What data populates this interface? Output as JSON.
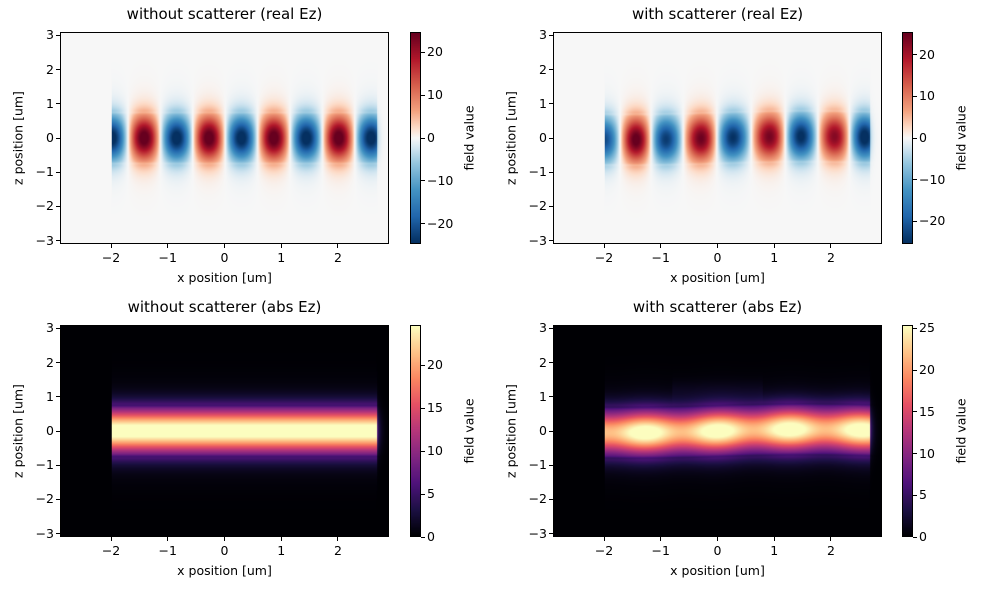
{
  "chart_data": [
    {
      "type": "heatmap",
      "title": "without scatterer (real Ez)",
      "xlabel": "x position [um]",
      "ylabel": "z position [um]",
      "xlim": [
        -2.9,
        2.9
      ],
      "ylim": [
        -3.1,
        3.1
      ],
      "xticks": [
        "−2",
        "−1",
        "0",
        "1",
        "2"
      ],
      "xtick_values": [
        -2,
        -1,
        0,
        1,
        2
      ],
      "yticks": [
        "−3",
        "−2",
        "−1",
        "0",
        "1",
        "2",
        "3"
      ],
      "ytick_values": [
        -3,
        -2,
        -1,
        0,
        1,
        2,
        3
      ],
      "colormap": "RdBu_r",
      "colorbar": {
        "label": "field value",
        "range": [
          -24.7,
          24.7
        ],
        "ticks": [
          "−20",
          "−10",
          "0",
          "10",
          "20"
        ],
        "tick_values": [
          -20,
          -10,
          0,
          10,
          20
        ]
      }
    },
    {
      "type": "heatmap",
      "title": "with scatterer (real Ez)",
      "xlabel": "x position [um]",
      "ylabel": "z position [um]",
      "xlim": [
        -2.9,
        2.9
      ],
      "ylim": [
        -3.1,
        3.1
      ],
      "xticks": [
        "−2",
        "−1",
        "0",
        "1",
        "2"
      ],
      "xtick_values": [
        -2,
        -1,
        0,
        1,
        2
      ],
      "yticks": [
        "−3",
        "−2",
        "−1",
        "0",
        "1",
        "2",
        "3"
      ],
      "ytick_values": [
        -3,
        -2,
        -1,
        0,
        1,
        2,
        3
      ],
      "colormap": "RdBu_r",
      "colorbar": {
        "label": "field value",
        "range": [
          -25.4,
          25.4
        ],
        "ticks": [
          "−20",
          "−10",
          "0",
          "10",
          "20"
        ],
        "tick_values": [
          -20,
          -10,
          0,
          10,
          20
        ]
      }
    },
    {
      "type": "heatmap",
      "title": "without scatterer (abs Ez)",
      "xlabel": "x position [um]",
      "ylabel": "z position [um]",
      "xlim": [
        -2.9,
        2.9
      ],
      "ylim": [
        -3.1,
        3.1
      ],
      "xticks": [
        "−2",
        "−1",
        "0",
        "1",
        "2"
      ],
      "xtick_values": [
        -2,
        -1,
        0,
        1,
        2
      ],
      "yticks": [
        "−3",
        "−2",
        "−1",
        "0",
        "1",
        "2",
        "3"
      ],
      "ytick_values": [
        -3,
        -2,
        -1,
        0,
        1,
        2,
        3
      ],
      "colormap": "magma",
      "colorbar": {
        "label": "field value",
        "range": [
          0,
          24.7
        ],
        "ticks": [
          "0",
          "5",
          "10",
          "15",
          "20"
        ],
        "tick_values": [
          0,
          5,
          10,
          15,
          20
        ]
      }
    },
    {
      "type": "heatmap",
      "title": "with scatterer (abs Ez)",
      "xlabel": "x position [um]",
      "ylabel": "z position [um]",
      "xlim": [
        -2.9,
        2.9
      ],
      "ylim": [
        -3.1,
        3.1
      ],
      "xticks": [
        "−2",
        "−1",
        "0",
        "1",
        "2"
      ],
      "xtick_values": [
        -2,
        -1,
        0,
        1,
        2
      ],
      "yticks": [
        "−3",
        "−2",
        "−1",
        "0",
        "1",
        "2",
        "3"
      ],
      "ytick_values": [
        -3,
        -2,
        -1,
        0,
        1,
        2,
        3
      ],
      "colormap": "magma",
      "colorbar": {
        "label": "field value",
        "range": [
          0,
          25.4
        ],
        "ticks": [
          "0",
          "5",
          "10",
          "15",
          "20",
          "25"
        ],
        "tick_values": [
          0,
          5,
          10,
          15,
          20,
          25
        ]
      }
    }
  ]
}
